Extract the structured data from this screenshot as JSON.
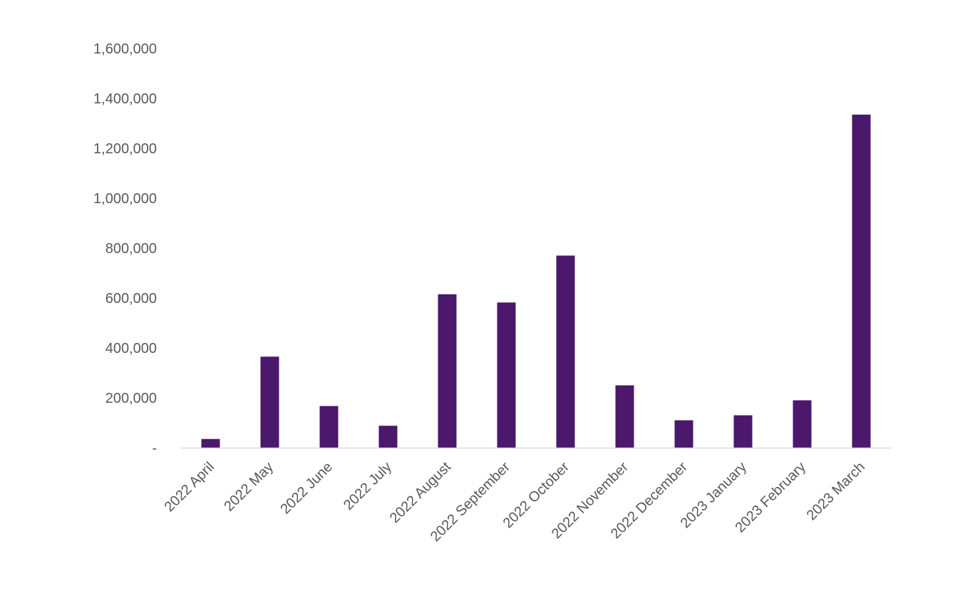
{
  "chart_data": {
    "type": "bar",
    "title": "",
    "xlabel": "",
    "ylabel": "",
    "categories": [
      "2022 April",
      "2022 May",
      "2022 June",
      "2022 July",
      "2022 August",
      "2022 September",
      "2022 October",
      "2022 November",
      "2022 December",
      "2023 January",
      "2023 February",
      "2023 March"
    ],
    "values": [
      35000,
      365000,
      167000,
      88000,
      615000,
      582000,
      770000,
      250000,
      110000,
      130000,
      190000,
      1335000
    ],
    "ylim": [
      0,
      1600000
    ],
    "y_ticks": [
      {
        "value": 0,
        "label": "-"
      },
      {
        "value": 200000,
        "label": "200,000"
      },
      {
        "value": 400000,
        "label": "400,000"
      },
      {
        "value": 600000,
        "label": "600,000"
      },
      {
        "value": 800000,
        "label": "800,000"
      },
      {
        "value": 1000000,
        "label": "1,000,000"
      },
      {
        "value": 1200000,
        "label": "1,200,000"
      },
      {
        "value": 1400000,
        "label": "1,400,000"
      },
      {
        "value": 1600000,
        "label": "1,600,000"
      }
    ],
    "grid": false,
    "legend": "none",
    "colors": {
      "bar": "#4b186c",
      "axis": "#d9d9d9",
      "text": "#595959"
    }
  }
}
